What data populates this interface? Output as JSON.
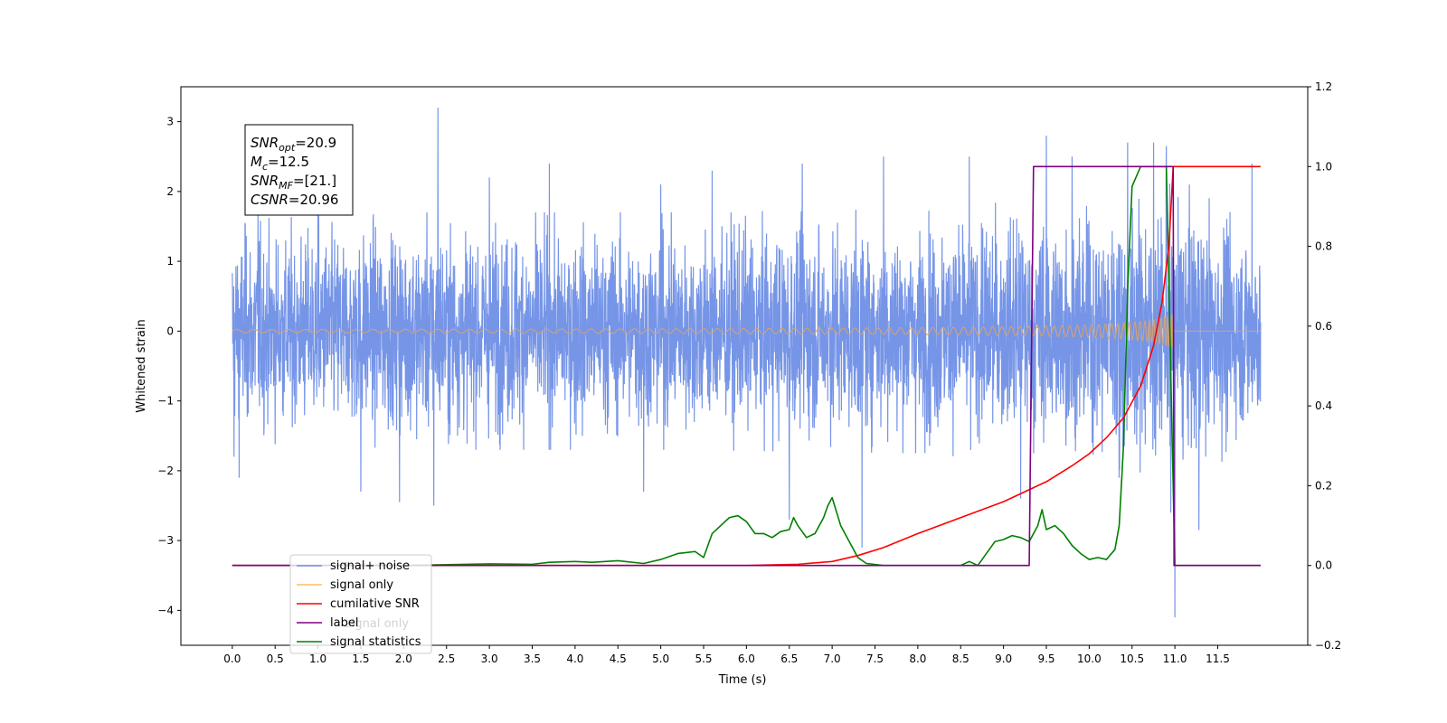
{
  "chart_data": {
    "type": "line",
    "xlabel": "Time (s)",
    "ylabel": "Whitened strain",
    "xlim": [
      -0.6,
      12.55
    ],
    "ylim": [
      -4.5,
      3.5
    ],
    "y2lim": [
      -0.2,
      1.2
    ],
    "x_ticks": [
      0.0,
      0.5,
      1.0,
      1.5,
      2.0,
      2.5,
      3.0,
      3.5,
      4.0,
      4.5,
      5.0,
      5.5,
      6.0,
      6.5,
      7.0,
      7.5,
      8.0,
      8.5,
      9.0,
      9.5,
      10.0,
      10.5,
      11.0,
      11.5
    ],
    "x_tick_labels": [
      "0.0",
      "0.5",
      "1.0",
      "1.5",
      "2.0",
      "2.5",
      "3.0",
      "3.5",
      "4.0",
      "4.5",
      "5.0",
      "5.5",
      "6.0",
      "6.5",
      "7.0",
      "7.5",
      "8.0",
      "8.5",
      "9.0",
      "9.5",
      "10.0",
      "10.5",
      "11.0",
      "11.5"
    ],
    "y_ticks": [
      3,
      2,
      1,
      0,
      -1,
      -2,
      -3,
      -4
    ],
    "y_tick_labels": [
      "3",
      "2",
      "1",
      "0",
      "−1",
      "−2",
      "−3",
      "−4"
    ],
    "y2_ticks": [
      1.2,
      1.0,
      0.8,
      0.6,
      0.4,
      0.2,
      0.0,
      -0.2
    ],
    "y2_tick_labels": [
      "1.2",
      "1.0",
      "0.8",
      "0.6",
      "0.4",
      "0.2",
      "0.0",
      "−0.2"
    ],
    "grid": false,
    "legend_position": "lower-left",
    "colors": {
      "noise": "#6f8fe6",
      "signal": "#d9a26a",
      "signal_line": "#ffbf5f",
      "csnr": "#ff0000",
      "label": "#800080",
      "stats": "#008000"
    },
    "annotation": {
      "lines": [
        {
          "base": "SNR",
          "sub": "opt",
          "value": "=20.9"
        },
        {
          "base": "M",
          "sub": "c",
          "value": "=12.5"
        },
        {
          "base": "SNR",
          "sub": "MF",
          "value": "=[21.]"
        },
        {
          "base": "CSNR",
          "sub": "",
          "value": "=20.96"
        }
      ]
    },
    "series": [
      {
        "name": "signal+ noise",
        "axis": "left",
        "style": "noise",
        "x_range": [
          0.0,
          12.0
        ],
        "envelope": [
          [
            0.0,
            1.6
          ],
          [
            2.0,
            1.7
          ],
          [
            5.0,
            1.7
          ],
          [
            8.0,
            1.75
          ],
          [
            9.5,
            1.9
          ],
          [
            10.5,
            2.0
          ],
          [
            11.0,
            2.2
          ],
          [
            12.0,
            1.6
          ]
        ],
        "spikes": [
          [
            0.02,
            -1.8
          ],
          [
            0.08,
            -2.1
          ],
          [
            0.15,
            1.55
          ],
          [
            0.3,
            1.7
          ],
          [
            1.0,
            1.8
          ],
          [
            1.5,
            -2.3
          ],
          [
            1.95,
            -2.45
          ],
          [
            2.4,
            3.2
          ],
          [
            2.35,
            -2.5
          ],
          [
            3.0,
            2.2
          ],
          [
            3.7,
            2.4
          ],
          [
            4.8,
            -2.3
          ],
          [
            5.0,
            2.1
          ],
          [
            5.6,
            2.3
          ],
          [
            6.5,
            -2.7
          ],
          [
            6.65,
            2.4
          ],
          [
            7.35,
            -3.1
          ],
          [
            7.6,
            2.5
          ],
          [
            8.6,
            2.5
          ],
          [
            9.2,
            -2.4
          ],
          [
            9.5,
            2.8
          ],
          [
            9.8,
            2.5
          ],
          [
            10.35,
            -2.1
          ],
          [
            10.45,
            2.7
          ],
          [
            10.75,
            2.7
          ],
          [
            10.9,
            2.65
          ],
          [
            10.95,
            -2.6
          ],
          [
            11.0,
            -4.1
          ],
          [
            11.28,
            -2.85
          ],
          [
            11.9,
            2.4
          ]
        ]
      },
      {
        "name": "signal only",
        "axis": "left",
        "style": "signal",
        "chirp": {
          "start": 0.0,
          "merger": 10.98,
          "end": 12.0,
          "amplitude_k": 0.4,
          "exponent": 0.25
        }
      },
      {
        "name": "cumilative SNR",
        "axis": "right",
        "style": "csnr",
        "x": [
          0.0,
          6.0,
          6.6,
          7.0,
          7.3,
          7.6,
          8.0,
          8.5,
          9.0,
          9.5,
          9.8,
          10.0,
          10.2,
          10.4,
          10.6,
          10.75,
          10.85,
          10.93,
          10.98,
          12.0
        ],
        "y": [
          0.0,
          0.0,
          0.003,
          0.01,
          0.025,
          0.045,
          0.08,
          0.12,
          0.16,
          0.21,
          0.25,
          0.28,
          0.32,
          0.37,
          0.45,
          0.55,
          0.66,
          0.8,
          1.0,
          1.0
        ]
      },
      {
        "name": "label",
        "axis": "right",
        "style": "label",
        "x": [
          0.0,
          9.3,
          9.35,
          10.98,
          10.99,
          12.0
        ],
        "y": [
          0.0,
          0.0,
          1.0,
          1.0,
          0.0,
          0.0
        ]
      },
      {
        "name": "signal statistics",
        "axis": "right",
        "style": "stats",
        "x": [
          0.0,
          1.0,
          2.0,
          2.5,
          3.0,
          3.5,
          3.7,
          4.0,
          4.2,
          4.5,
          4.8,
          5.0,
          5.2,
          5.4,
          5.5,
          5.6,
          5.7,
          5.8,
          5.9,
          6.0,
          6.1,
          6.2,
          6.3,
          6.4,
          6.5,
          6.55,
          6.6,
          6.7,
          6.8,
          6.9,
          6.95,
          7.0,
          7.1,
          7.2,
          7.3,
          7.4,
          7.6,
          8.0,
          8.5,
          8.6,
          8.7,
          8.8,
          8.9,
          9.0,
          9.1,
          9.2,
          9.3,
          9.4,
          9.45,
          9.5,
          9.6,
          9.7,
          9.8,
          9.9,
          10.0,
          10.1,
          10.2,
          10.3,
          10.35,
          10.4,
          10.45,
          10.5,
          10.6,
          10.9,
          10.95,
          11.0,
          12.0
        ],
        "y": [
          0.0,
          0.0,
          0.0,
          0.002,
          0.004,
          0.003,
          0.008,
          0.01,
          0.008,
          0.012,
          0.005,
          0.015,
          0.03,
          0.035,
          0.02,
          0.08,
          0.1,
          0.12,
          0.125,
          0.11,
          0.08,
          0.08,
          0.07,
          0.085,
          0.09,
          0.12,
          0.1,
          0.07,
          0.08,
          0.12,
          0.15,
          0.17,
          0.1,
          0.06,
          0.02,
          0.005,
          0.0,
          0.0,
          0.0,
          0.01,
          0.0,
          0.03,
          0.06,
          0.065,
          0.075,
          0.07,
          0.06,
          0.1,
          0.14,
          0.09,
          0.1,
          0.08,
          0.05,
          0.03,
          0.015,
          0.02,
          0.015,
          0.04,
          0.1,
          0.3,
          0.7,
          0.95,
          1.0,
          1.0,
          0.5,
          0.0,
          0.0
        ]
      }
    ],
    "legend_extra_text": "signal only"
  }
}
